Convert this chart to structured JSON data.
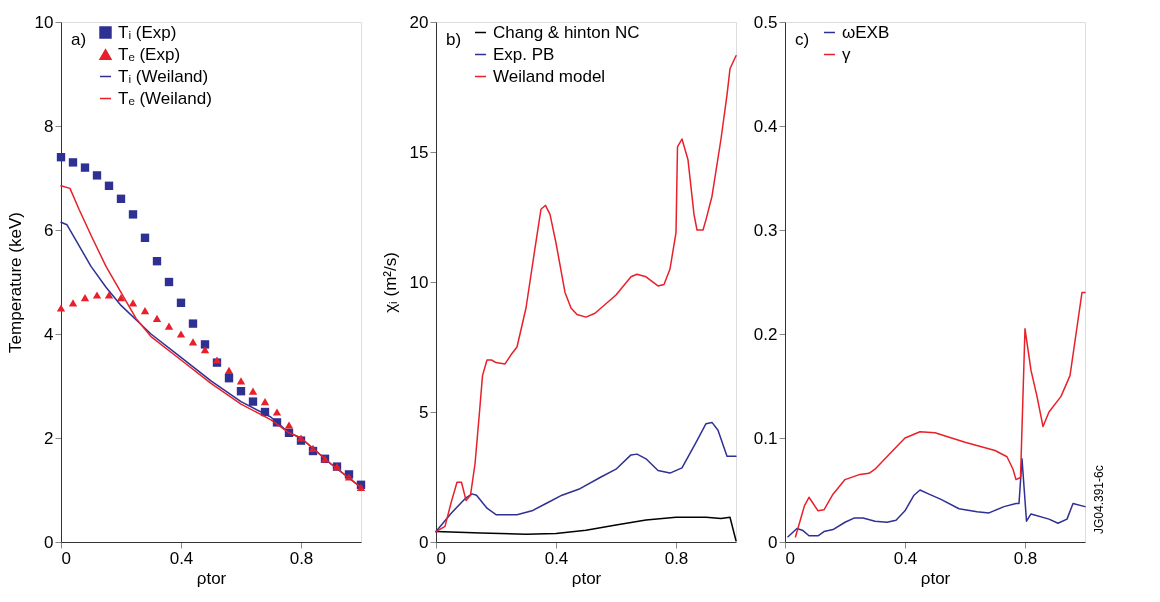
{
  "chart_data": [
    {
      "type": "line",
      "xlabel": "ρtor",
      "ylabel": "Temperature (keV)",
      "annotations": [
        "a)"
      ],
      "xlim": [
        0,
        1
      ],
      "xticks": [
        0,
        0.4,
        0.8
      ],
      "ylim": [
        0,
        10
      ],
      "yticks": [
        0,
        2,
        4,
        6,
        8,
        10
      ],
      "grid": false,
      "legend": "top left",
      "series": [
        {
          "name": "Tᵢ (Exp)",
          "type": "scatter",
          "marker": "square",
          "color": "#2e3192",
          "x": [
            0,
            0.04,
            0.08,
            0.12,
            0.16,
            0.2,
            0.24,
            0.28,
            0.32,
            0.36,
            0.4,
            0.44,
            0.48,
            0.52,
            0.56,
            0.6,
            0.64,
            0.68,
            0.72,
            0.76,
            0.8,
            0.84,
            0.88,
            0.92,
            0.96,
            1.0
          ],
          "values": [
            7.4,
            7.3,
            7.2,
            7.05,
            6.85,
            6.6,
            6.3,
            5.85,
            5.4,
            5.0,
            4.6,
            4.2,
            3.8,
            3.45,
            3.15,
            2.9,
            2.7,
            2.5,
            2.3,
            2.1,
            1.95,
            1.75,
            1.6,
            1.45,
            1.3,
            1.1
          ]
        },
        {
          "name": "Tₑ (Exp)",
          "type": "scatter",
          "marker": "triangle",
          "color": "#e8202a",
          "x": [
            0,
            0.04,
            0.08,
            0.12,
            0.16,
            0.2,
            0.24,
            0.28,
            0.32,
            0.36,
            0.4,
            0.44,
            0.48,
            0.52,
            0.56,
            0.6,
            0.64,
            0.68,
            0.72,
            0.76,
            0.8,
            0.84,
            0.88,
            0.92,
            0.96,
            1.0
          ],
          "values": [
            4.5,
            4.6,
            4.7,
            4.75,
            4.75,
            4.7,
            4.6,
            4.45,
            4.3,
            4.15,
            4.0,
            3.85,
            3.7,
            3.5,
            3.3,
            3.1,
            2.9,
            2.7,
            2.5,
            2.25,
            2.0,
            1.8,
            1.6,
            1.45,
            1.25,
            1.05
          ]
        },
        {
          "name": "Tᵢ (Weiland)",
          "color": "#2e3192",
          "x": [
            0,
            0.02,
            0.05,
            0.1,
            0.15,
            0.2,
            0.3,
            0.4,
            0.5,
            0.6,
            0.7,
            0.76,
            0.8,
            0.9,
            1.0
          ],
          "values": [
            6.15,
            6.1,
            5.8,
            5.3,
            4.9,
            4.55,
            4.0,
            3.55,
            3.1,
            2.7,
            2.4,
            2.1,
            2.0,
            1.5,
            1.05
          ]
        },
        {
          "name": "Tₑ (Weiland)",
          "color": "#e8202a",
          "x": [
            0,
            0.03,
            0.06,
            0.1,
            0.15,
            0.2,
            0.25,
            0.3,
            0.4,
            0.5,
            0.6,
            0.7,
            0.76,
            0.8,
            0.9,
            1.0
          ],
          "values": [
            6.85,
            6.8,
            6.4,
            5.9,
            5.3,
            4.8,
            4.3,
            3.95,
            3.5,
            3.05,
            2.65,
            2.35,
            2.1,
            2.0,
            1.5,
            1.05
          ]
        }
      ]
    },
    {
      "type": "line",
      "xlabel": "ρtor",
      "ylabel": "χᵢ (m²/s)",
      "annotations": [
        "b)"
      ],
      "xlim": [
        0,
        1
      ],
      "xticks": [
        0,
        0.4,
        0.8
      ],
      "ylim": [
        0,
        20
      ],
      "yticks": [
        0,
        5,
        10,
        15,
        20
      ],
      "grid": false,
      "legend": "top left",
      "series": [
        {
          "name": "Chang & hinton NC",
          "color": "#000000",
          "x": [
            0,
            0.15,
            0.3,
            0.4,
            0.5,
            0.6,
            0.7,
            0.8,
            0.9,
            0.95,
            0.98,
            1.0
          ],
          "values": [
            0.4,
            0.35,
            0.3,
            0.33,
            0.45,
            0.65,
            0.85,
            0.95,
            0.95,
            0.9,
            0.95,
            0.05
          ]
        },
        {
          "name": "Exp. PB",
          "color": "#2e3192",
          "x": [
            0,
            0.05,
            0.1,
            0.12,
            0.135,
            0.17,
            0.2,
            0.27,
            0.32,
            0.37,
            0.42,
            0.48,
            0.55,
            0.6,
            0.65,
            0.67,
            0.7,
            0.74,
            0.78,
            0.82,
            0.87,
            0.9,
            0.92,
            0.94,
            0.97,
            1.0
          ],
          "values": [
            0.4,
            1.1,
            1.7,
            1.85,
            1.8,
            1.3,
            1.05,
            1.05,
            1.2,
            1.5,
            1.8,
            2.05,
            2.5,
            2.8,
            3.35,
            3.38,
            3.2,
            2.75,
            2.65,
            2.85,
            3.9,
            4.55,
            4.6,
            4.3,
            3.3,
            3.3
          ]
        },
        {
          "name": "Weiland model",
          "color": "#e8202a",
          "x": [
            0,
            0.03,
            0.05,
            0.07,
            0.085,
            0.1,
            0.115,
            0.13,
            0.145,
            0.155,
            0.17,
            0.185,
            0.2,
            0.23,
            0.25,
            0.27,
            0.3,
            0.33,
            0.35,
            0.365,
            0.38,
            0.4,
            0.43,
            0.45,
            0.47,
            0.5,
            0.53,
            0.6,
            0.65,
            0.67,
            0.7,
            0.74,
            0.76,
            0.78,
            0.8,
            0.805,
            0.82,
            0.84,
            0.86,
            0.87,
            0.89,
            0.9,
            0.92,
            0.95,
            0.97,
            0.98,
            1.0
          ],
          "values": [
            0.4,
            0.6,
            1.5,
            2.3,
            2.3,
            1.6,
            1.8,
            3.0,
            5.0,
            6.4,
            7.0,
            7.0,
            6.9,
            6.85,
            7.2,
            7.5,
            9.0,
            11.3,
            12.8,
            12.95,
            12.6,
            11.5,
            9.6,
            9.0,
            8.75,
            8.65,
            8.8,
            9.5,
            10.2,
            10.3,
            10.2,
            9.85,
            9.9,
            10.5,
            11.9,
            15.2,
            15.5,
            14.7,
            12.6,
            12.0,
            12.0,
            12.4,
            13.3,
            15.5,
            17.2,
            18.2,
            18.7
          ]
        }
      ]
    },
    {
      "type": "line",
      "xlabel": "ρtor",
      "annotations": [
        "c)",
        "JG04.391-6c"
      ],
      "xlim": [
        0,
        1
      ],
      "xticks": [
        0,
        0.4,
        0.8
      ],
      "ylim": [
        0,
        0.5
      ],
      "yticks": [
        0,
        0.1,
        0.2,
        0.3,
        0.4,
        0.5
      ],
      "grid": false,
      "legend": "top left",
      "series": [
        {
          "name": "ωEXB",
          "color": "#2e3192",
          "x": [
            0.01,
            0.04,
            0.06,
            0.08,
            0.11,
            0.13,
            0.16,
            0.2,
            0.23,
            0.26,
            0.3,
            0.34,
            0.37,
            0.4,
            0.43,
            0.45,
            0.48,
            0.52,
            0.58,
            0.64,
            0.68,
            0.73,
            0.77,
            0.78,
            0.79,
            0.805,
            0.82,
            0.88,
            0.91,
            0.94,
            0.96,
            1.0
          ],
          "values": [
            0.005,
            0.013,
            0.011,
            0.006,
            0.006,
            0.01,
            0.012,
            0.019,
            0.023,
            0.023,
            0.02,
            0.019,
            0.021,
            0.03,
            0.045,
            0.05,
            0.046,
            0.041,
            0.032,
            0.029,
            0.028,
            0.034,
            0.037,
            0.037,
            0.08,
            0.02,
            0.027,
            0.022,
            0.018,
            0.022,
            0.037,
            0.034
          ]
        },
        {
          "name": "γ",
          "color": "#e8202a",
          "x": [
            0.035,
            0.065,
            0.08,
            0.11,
            0.13,
            0.16,
            0.2,
            0.25,
            0.28,
            0.3,
            0.35,
            0.4,
            0.45,
            0.5,
            0.6,
            0.7,
            0.74,
            0.76,
            0.77,
            0.785,
            0.8,
            0.82,
            0.84,
            0.86,
            0.88,
            0.92,
            0.95,
            0.97,
            0.99,
            1.0
          ],
          "values": [
            0.005,
            0.035,
            0.043,
            0.03,
            0.031,
            0.046,
            0.06,
            0.065,
            0.066,
            0.07,
            0.085,
            0.1,
            0.106,
            0.105,
            0.096,
            0.088,
            0.082,
            0.07,
            0.06,
            0.062,
            0.205,
            0.165,
            0.14,
            0.111,
            0.125,
            0.14,
            0.16,
            0.2,
            0.24,
            0.24
          ]
        }
      ]
    }
  ]
}
